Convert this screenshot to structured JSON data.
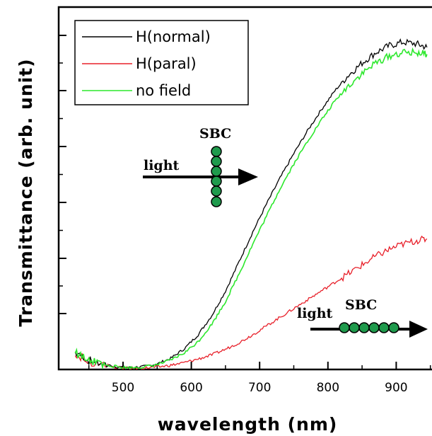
{
  "chart_data": {
    "type": "line",
    "title": "",
    "xlabel": "wavelength (nm)",
    "ylabel": "Transmittance (arb. unit)",
    "xlim": [
      430,
      945
    ],
    "ylim": [
      0,
      1.0
    ],
    "xticks": [
      500,
      600,
      700,
      800,
      900
    ],
    "yticks_labeled": false,
    "grid": false,
    "legend": {
      "placement": "top-left"
    },
    "series": [
      {
        "name": "H(normal)",
        "color": "#000000",
        "x": [
          430,
          450,
          470,
          490,
          510,
          530,
          550,
          570,
          590,
          610,
          630,
          650,
          670,
          690,
          710,
          730,
          750,
          770,
          790,
          810,
          830,
          850,
          870,
          890,
          910,
          930,
          945
        ],
        "y": [
          0.05,
          0.025,
          0.015,
          0.008,
          0.005,
          0.008,
          0.016,
          0.032,
          0.06,
          0.1,
          0.155,
          0.225,
          0.31,
          0.395,
          0.475,
          0.55,
          0.62,
          0.685,
          0.745,
          0.8,
          0.845,
          0.88,
          0.91,
          0.93,
          0.94,
          0.935,
          0.925
        ]
      },
      {
        "name": "H(paral)",
        "color": "#e8202a",
        "x": [
          430,
          450,
          470,
          490,
          510,
          530,
          550,
          570,
          590,
          610,
          630,
          650,
          670,
          690,
          710,
          730,
          750,
          770,
          790,
          810,
          830,
          850,
          870,
          890,
          910,
          930,
          945
        ],
        "y": [
          0.045,
          0.022,
          0.012,
          0.006,
          0.003,
          0.004,
          0.007,
          0.012,
          0.02,
          0.03,
          0.042,
          0.058,
          0.077,
          0.1,
          0.125,
          0.15,
          0.175,
          0.2,
          0.225,
          0.25,
          0.275,
          0.3,
          0.325,
          0.345,
          0.36,
          0.37,
          0.375
        ]
      },
      {
        "name": "no field",
        "color": "#2de82d",
        "x": [
          430,
          450,
          470,
          490,
          510,
          530,
          550,
          570,
          590,
          610,
          630,
          650,
          670,
          690,
          710,
          730,
          750,
          770,
          790,
          810,
          830,
          850,
          870,
          890,
          910,
          930,
          945
        ],
        "y": [
          0.05,
          0.025,
          0.015,
          0.008,
          0.005,
          0.007,
          0.014,
          0.027,
          0.048,
          0.08,
          0.13,
          0.195,
          0.275,
          0.36,
          0.44,
          0.52,
          0.59,
          0.655,
          0.715,
          0.77,
          0.815,
          0.85,
          0.88,
          0.9,
          0.91,
          0.91,
          0.905
        ]
      }
    ],
    "annotations": [
      {
        "id": "sbc-vertical",
        "label_text": "SBC",
        "arrow_text": "light"
      },
      {
        "id": "sbc-horizontal",
        "label_text": "SBC",
        "arrow_text": "light"
      }
    ]
  }
}
